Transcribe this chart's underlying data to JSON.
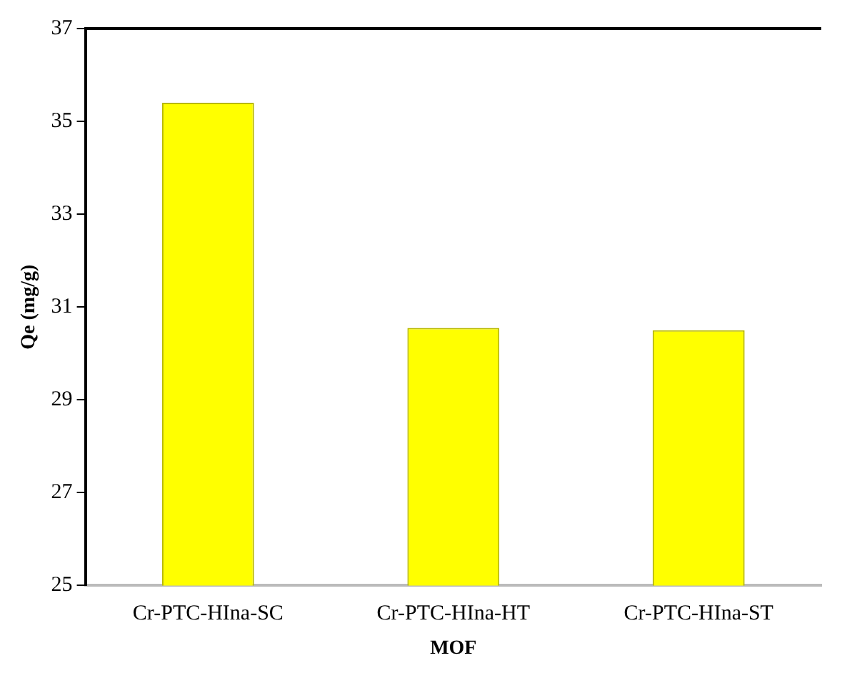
{
  "chart_data": {
    "type": "bar",
    "xlabel": "MOF",
    "ylabel": "Qe (mg/g)",
    "categories": [
      "Cr-PTC-HIna-SC",
      "Cr-PTC-HIna-HT",
      "Cr-PTC-HIna-ST"
    ],
    "values": [
      35.4,
      30.55,
      30.5
    ],
    "color": "#ffff00",
    "ylim": [
      25,
      37
    ],
    "yticks": [
      25,
      27,
      29,
      31,
      33,
      35,
      37
    ],
    "grid": false,
    "legend": false
  }
}
